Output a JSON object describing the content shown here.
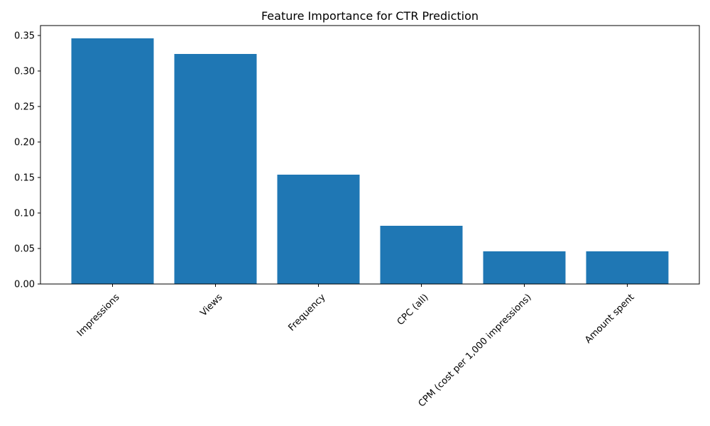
{
  "chart_data": {
    "type": "bar",
    "title": "Feature Importance for CTR Prediction",
    "xlabel": "",
    "ylabel": "",
    "categories": [
      "Impressions",
      "Views",
      "Frequency",
      "CPC (all)",
      "CPM (cost per 1,000 impressions)",
      "Amount spent"
    ],
    "values": [
      0.346,
      0.324,
      0.154,
      0.082,
      0.046,
      0.046
    ],
    "ylim": [
      0,
      0.364
    ],
    "yticks": [
      0.0,
      0.05,
      0.1,
      0.15,
      0.2,
      0.25,
      0.3,
      0.35
    ],
    "ytick_labels": [
      "0.00",
      "0.05",
      "0.10",
      "0.15",
      "0.20",
      "0.25",
      "0.30",
      "0.35"
    ],
    "bar_color": "#1f77b4",
    "grid": false,
    "legend": "none"
  }
}
